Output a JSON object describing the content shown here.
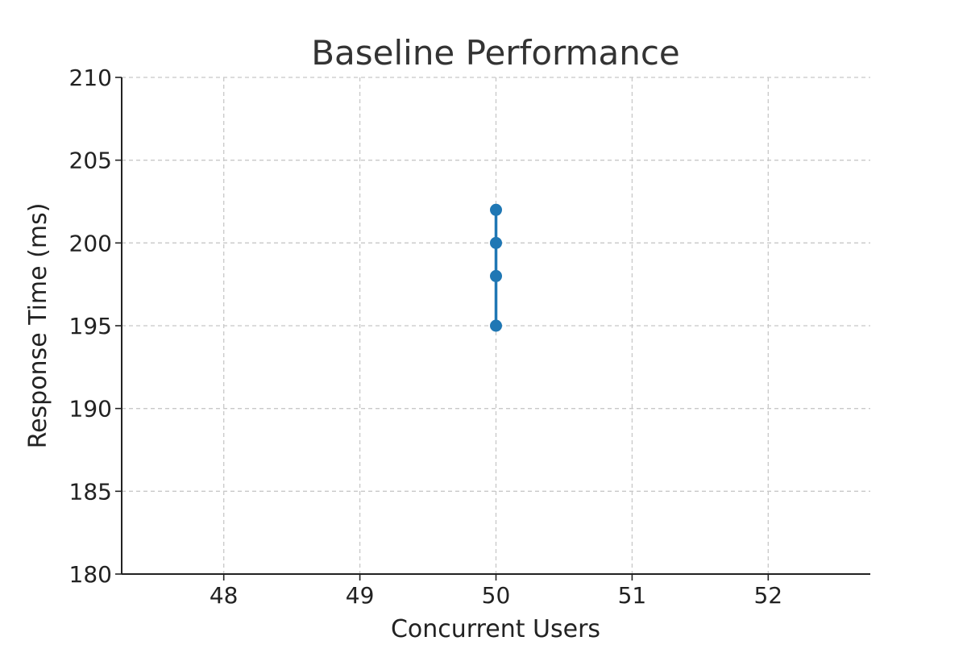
{
  "chart_data": {
    "type": "line",
    "title": "Baseline Performance",
    "xlabel": "Concurrent Users",
    "ylabel": "Response Time (ms)",
    "xlim": [
      47.25,
      52.75
    ],
    "ylim": [
      180,
      210
    ],
    "x_ticks": [
      48,
      49,
      50,
      51,
      52
    ],
    "y_ticks": [
      180,
      185,
      190,
      195,
      200,
      205,
      210
    ],
    "grid": true,
    "grid_style": "dashed",
    "legend": "none",
    "series": [
      {
        "x": [
          50,
          50,
          50,
          50
        ],
        "y": [
          195,
          198,
          200,
          202
        ],
        "color": "#1f77b4",
        "marker": "circle"
      }
    ]
  }
}
